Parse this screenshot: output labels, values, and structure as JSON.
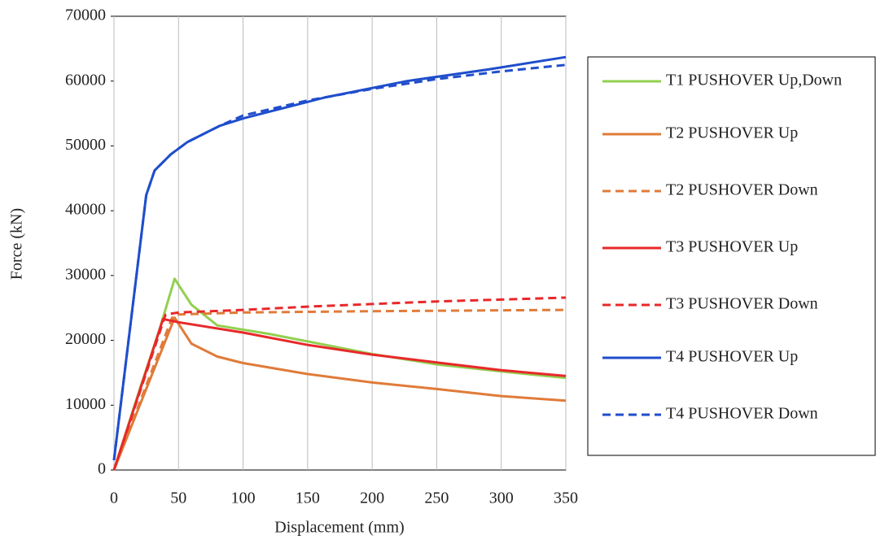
{
  "chart_data": {
    "type": "line",
    "x_label": "Displacement (mm)",
    "y_label": "Force (kN)",
    "xlim": [
      0,
      350
    ],
    "xticks": [
      0,
      50,
      100,
      150,
      200,
      250,
      300,
      350
    ],
    "ylim": [
      0,
      70000
    ],
    "yticks": [
      0,
      10000,
      20000,
      30000,
      40000,
      50000,
      60000,
      70000
    ],
    "x_grid": true,
    "series": [
      {
        "name": "T1 PUSHOVER Up,Down",
        "color": "#92d050",
        "dash": false,
        "x": [
          0,
          20,
          35,
          47,
          60,
          80,
          120,
          200,
          250,
          300,
          350
        ],
        "values": [
          0,
          12500,
          21500,
          29500,
          25500,
          22300,
          21000,
          17900,
          16300,
          15200,
          14200
        ]
      },
      {
        "name": "T2 PUSHOVER Up",
        "color": "#e07b39",
        "dash": false,
        "x": [
          0,
          47,
          60,
          80,
          100,
          150,
          200,
          250,
          300,
          350
        ],
        "values": [
          0,
          23500,
          19500,
          17500,
          16500,
          14800,
          13500,
          12500,
          11400,
          10700
        ]
      },
      {
        "name": "T2 PUSHOVER Down",
        "color": "#e07b39",
        "dash": true,
        "x": [
          0,
          45,
          50,
          100,
          200,
          350
        ],
        "values": [
          0,
          23500,
          24000,
          24300,
          24500,
          24700
        ]
      },
      {
        "name": "T3 PUSHOVER Up",
        "color": "#e8282a",
        "dash": false,
        "x": [
          0,
          38,
          50,
          100,
          150,
          200,
          250,
          300,
          350
        ],
        "values": [
          0,
          23300,
          22800,
          21200,
          19300,
          17800,
          16600,
          15400,
          14500
        ]
      },
      {
        "name": "T3 PUSHOVER Down",
        "color": "#e8282a",
        "dash": true,
        "x": [
          0,
          40,
          50,
          100,
          150,
          200,
          250,
          300,
          350
        ],
        "values": [
          0,
          24000,
          24300,
          24700,
          25200,
          25600,
          26000,
          26300,
          26600
        ]
      },
      {
        "name": "T4 PUSHOVER Up",
        "color": "#1f4ecc",
        "dash": false,
        "x": [
          0,
          25,
          31.5,
          44,
          57,
          82,
          101,
          164,
          227,
          290,
          350
        ],
        "values": [
          1500,
          42400,
          46200,
          48700,
          50600,
          53100,
          54300,
          57500,
          60000,
          61800,
          63700
        ]
      },
      {
        "name": "T4 PUSHOVER Down",
        "color": "#1f4ecc",
        "dash": true,
        "x": [
          0,
          25,
          31.5,
          44,
          57,
          82,
          100,
          150,
          200,
          250,
          300,
          350
        ],
        "values": [
          1500,
          42400,
          46200,
          48700,
          50600,
          53100,
          54700,
          57000,
          58800,
          60300,
          61500,
          62500
        ]
      }
    ]
  }
}
